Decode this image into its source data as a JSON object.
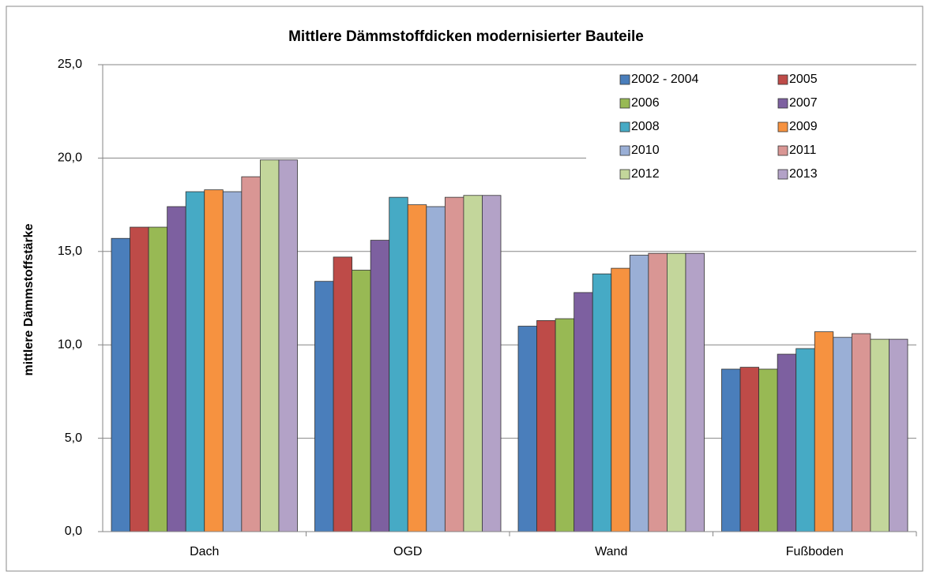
{
  "chart_data": {
    "type": "bar",
    "title": "Mittlere Dämmstoffdicken  modernisierter  Bauteile",
    "y_label": "mittlere Dämmstoffstärke",
    "categories": [
      "Dach",
      "OGD",
      "Wand",
      "Fußboden"
    ],
    "series": [
      {
        "name": "2002 - 2004",
        "color": "#4a7ebb",
        "values": [
          15.7,
          13.4,
          11.0,
          8.7
        ]
      },
      {
        "name": "2005",
        "color": "#be4b48",
        "values": [
          16.3,
          14.7,
          11.3,
          8.8
        ]
      },
      {
        "name": "2006",
        "color": "#98b954",
        "values": [
          16.3,
          14.0,
          11.4,
          8.7
        ]
      },
      {
        "name": "2007",
        "color": "#7d60a0",
        "values": [
          17.4,
          15.6,
          12.8,
          9.5
        ]
      },
      {
        "name": "2008",
        "color": "#46aac5",
        "values": [
          18.2,
          17.9,
          13.8,
          9.8
        ]
      },
      {
        "name": "2009",
        "color": "#f69240",
        "values": [
          18.3,
          17.5,
          14.1,
          10.7
        ]
      },
      {
        "name": "2010",
        "color": "#9aafd6",
        "values": [
          18.2,
          17.4,
          14.8,
          10.4
        ]
      },
      {
        "name": "2011",
        "color": "#d99694",
        "values": [
          19.0,
          17.9,
          14.9,
          10.6
        ]
      },
      {
        "name": "2012",
        "color": "#c3d69b",
        "values": [
          19.9,
          18.0,
          14.9,
          10.3
        ]
      },
      {
        "name": "2013",
        "color": "#b3a2c7",
        "values": [
          19.9,
          18.0,
          14.9,
          10.3
        ]
      }
    ],
    "ylim": [
      0,
      25
    ],
    "yticks": [
      {
        "value": 0,
        "label": "0,0"
      },
      {
        "value": 5,
        "label": "5,0"
      },
      {
        "value": 10,
        "label": "10,0"
      },
      {
        "value": 15,
        "label": "15,0"
      },
      {
        "value": 20,
        "label": "20,0"
      },
      {
        "value": 25,
        "label": "25,0"
      }
    ],
    "grid": true,
    "legend": "top-right"
  }
}
